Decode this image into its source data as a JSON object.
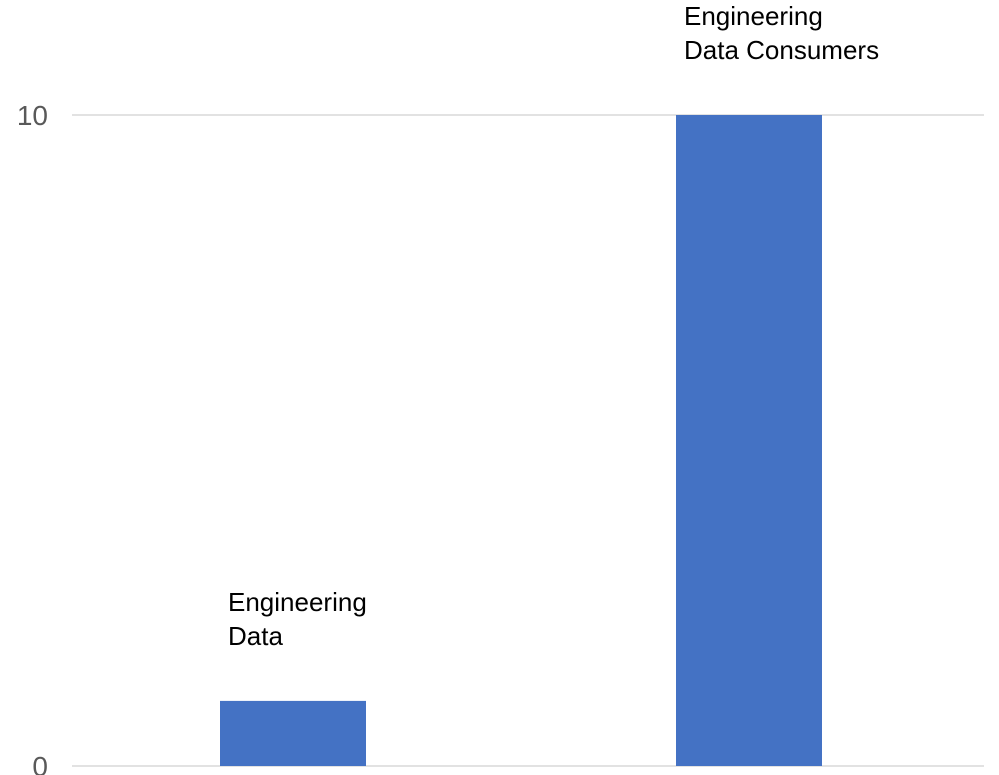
{
  "chart_data": {
    "type": "bar",
    "categories": [
      "",
      ""
    ],
    "values": [
      1,
      10
    ],
    "data_labels": [
      [
        "Engineering",
        "Data"
      ],
      [
        "Engineering",
        "Data Consumers"
      ]
    ],
    "title": "",
    "xlabel": "",
    "ylabel": "",
    "ylim": [
      0,
      10
    ],
    "yticks": [
      0,
      10
    ],
    "grid": true,
    "legend": "none",
    "bar_color": "#4472c4",
    "grid_color": "#d9d9d9",
    "tick_color": "#595959",
    "label_color": "#000000"
  }
}
